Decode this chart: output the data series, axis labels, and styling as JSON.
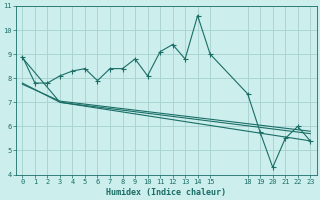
{
  "xlabel": "Humidex (Indice chaleur)",
  "background_color": "#cceeed",
  "grid_color": "#aad4d2",
  "line_color": "#1a6e66",
  "xlim_min": -0.5,
  "xlim_max": 23.5,
  "ylim_min": 4,
  "ylim_max": 11,
  "x_ticks": [
    0,
    1,
    2,
    3,
    4,
    5,
    6,
    7,
    8,
    9,
    10,
    11,
    12,
    13,
    14,
    15,
    18,
    19,
    20,
    21,
    22,
    23
  ],
  "y_ticks": [
    4,
    5,
    6,
    7,
    8,
    9,
    10,
    11
  ],
  "series1_x": [
    0,
    1,
    2,
    3,
    4,
    5,
    6,
    7,
    8,
    9,
    10,
    11,
    12,
    13,
    14,
    15,
    18,
    19,
    20,
    21,
    22,
    23
  ],
  "series1_y": [
    8.9,
    7.8,
    7.8,
    8.1,
    8.3,
    8.4,
    7.9,
    8.4,
    8.4,
    8.8,
    8.1,
    9.1,
    9.4,
    8.8,
    10.6,
    9.0,
    7.35,
    5.75,
    4.3,
    5.5,
    6.0,
    5.4
  ],
  "series2_x": [
    0,
    3,
    23
  ],
  "series2_y": [
    8.85,
    7.0,
    5.4
  ],
  "series3_x": [
    0,
    3,
    23
  ],
  "series3_y": [
    7.8,
    7.0,
    5.7
  ],
  "series4_x": [
    0,
    3,
    23
  ],
  "series4_y": [
    7.75,
    7.05,
    5.8
  ],
  "tick_fontsize": 5.0,
  "xlabel_fontsize": 6.0,
  "marker_size": 2.0,
  "linewidth": 0.8
}
